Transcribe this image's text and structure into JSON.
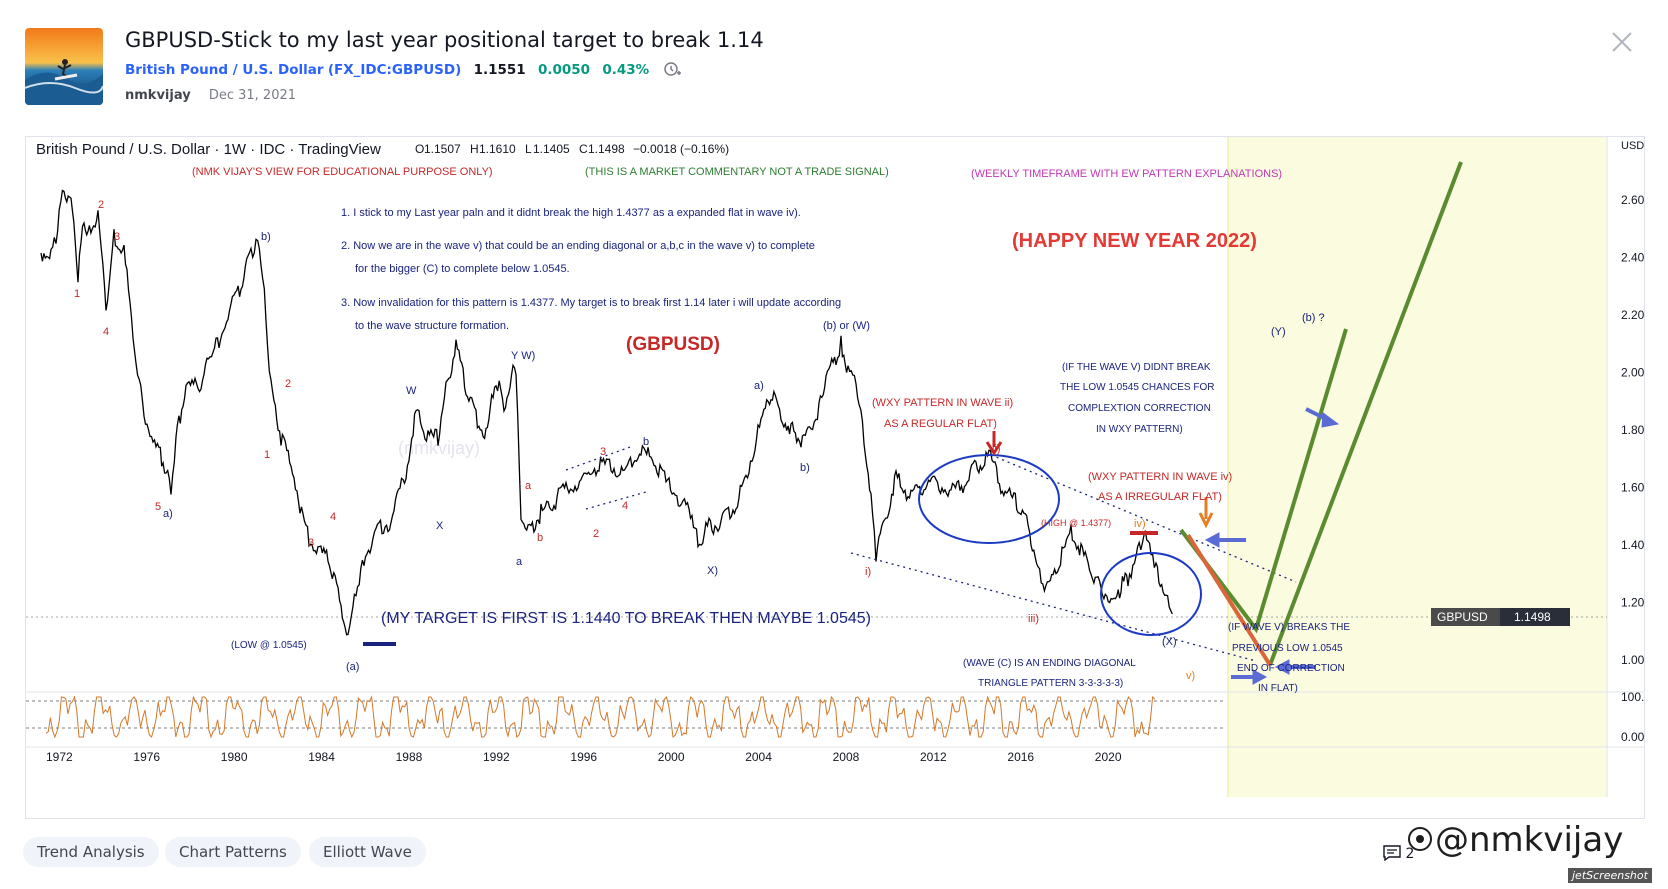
{
  "header": {
    "title": "GBPUSD-Stick to my last year positional target to break 1.14",
    "symbol_name": "British Pound / U.S. Dollar",
    "symbol_code": "(FX_IDC:GBPUSD)",
    "price": "1.1551",
    "change": "0.0050",
    "change_pct": "0.43%",
    "author": "nmkvijay",
    "date": "Dec 31, 2021",
    "thumbnail_icon": "surfer-thumbnail",
    "close_icon": "close-icon"
  },
  "chart": {
    "legend_title": "British Pound / U.S. Dollar · 1W · IDC · TradingView",
    "ohlc": {
      "o_label": "O",
      "o": "1.1507",
      "h_label": "H",
      "h": "1.1610",
      "l_label": "L",
      "l": "1.1405",
      "c_label": "C",
      "c": "1.1498",
      "change": "−0.0018 (−0.16%)"
    },
    "currency": "USD",
    "price_tag_symbol": "GBPUSD",
    "price_tag_value": "1.1498",
    "price_ticks": [
      "2.6000",
      "2.4000",
      "2.2000",
      "2.0000",
      "1.8000",
      "1.6000",
      "1.4000",
      "1.2000",
      "1.0000"
    ],
    "osc_ticks": [
      "100.00",
      "0.00"
    ],
    "year_ticks": [
      "1972",
      "1976",
      "1980",
      "1984",
      "1988",
      "1992",
      "1996",
      "2000",
      "2004",
      "2008",
      "2012",
      "2016",
      "2020"
    ],
    "annotations": {
      "edu": "(NMK VIJAY'S VIEW FOR EDUCATIONAL PURPOSE ONLY)",
      "commentary": "(THIS IS A MARKET COMMENTARY NOT A TRADE SIGNAL)",
      "weekly": "(WEEKLY TIMEFRAME WITH EW PATTERN EXPLANATIONS)",
      "note1": "1. I stick to my Last year paln and it didnt break the high 1.4377 as a expanded flat in wave iv).",
      "note2a": "2. Now we are in the wave v) that could be an ending diagonal or a,b,c in the wave v) to complete",
      "note2b": "for the bigger (C) to complete below 1.0545.",
      "note3a": "3. Now invalidation for this pattern is 1.4377. My target is to break first 1.14 later i will update according",
      "note3b": "to the wave structure formation.",
      "happy": "(HAPPY NEW YEAR 2022)",
      "gbpusd": "(GBPUSD)",
      "target": "(MY TARGET IS FIRST IS 1.1440 TO BREAK THEN MAYBE 1.0545)",
      "wxy_ii_1": "(WXY PATTERN IN WAVE ii)",
      "wxy_ii_2": "AS A REGULAR FLAT)",
      "wxy_iv_1": "(WXY PATTERN IN WAVE iv)",
      "wxy_iv_2": "AS A IRREGULAR FLAT)",
      "ifv_1": "(IF THE WAVE V) DIDNT BREAK",
      "ifv_2": "THE LOW 1.0545 CHANCES FOR",
      "ifv_3": "COMPLEXTION CORRECTION",
      "ifv_4": "IN WXY PATTERN)",
      "ifvb_1": "(IF WAVE V) BREAKS THE",
      "ifvb_2": "PREVIOUS LOW 1.0545",
      "ifvb_3": "END OF CORRECTION",
      "ifvb_4": "IN FLAT)",
      "wavec_1": "(WAVE (C) IS AN ENDING DIAGONAL",
      "wavec_2": "TRIANGLE PATTERN 3-3-3-3-3)",
      "low": "(LOW @ 1.0545)",
      "high": "(HIGH @ 1.4377)"
    },
    "wave_labels": [
      {
        "t": "1",
        "c": "red"
      },
      {
        "t": "2",
        "c": "red"
      },
      {
        "t": "3",
        "c": "red"
      },
      {
        "t": "4",
        "c": "red"
      },
      {
        "t": "5",
        "c": "red"
      },
      {
        "t": "a)",
        "c": "navy"
      },
      {
        "t": "b)",
        "c": "navy"
      },
      {
        "t": "1",
        "c": "red"
      },
      {
        "t": "2",
        "c": "red"
      },
      {
        "t": "3",
        "c": "red"
      },
      {
        "t": "4",
        "c": "red"
      },
      {
        "t": "(a)",
        "c": "navy"
      },
      {
        "t": "W",
        "c": "navy"
      },
      {
        "t": "X",
        "c": "navy"
      },
      {
        "t": "Y W)",
        "c": "navy"
      },
      {
        "t": "a",
        "c": "red"
      },
      {
        "t": "b",
        "c": "red"
      },
      {
        "t": "a",
        "c": "navy"
      },
      {
        "t": "2",
        "c": "red"
      },
      {
        "t": "3",
        "c": "red"
      },
      {
        "t": "4",
        "c": "red"
      },
      {
        "t": "b",
        "c": "navy"
      },
      {
        "t": "X)",
        "c": "navy"
      },
      {
        "t": "a)",
        "c": "navy"
      },
      {
        "t": "b)",
        "c": "navy"
      },
      {
        "t": "(b) or (W)",
        "c": "navy"
      },
      {
        "t": "i)",
        "c": "red"
      },
      {
        "t": "ii)",
        "c": "red"
      },
      {
        "t": "iii)",
        "c": "red"
      },
      {
        "t": "iv)",
        "c": "orange"
      },
      {
        "t": "v)",
        "c": "orange"
      },
      {
        "t": "(X)",
        "c": "navy"
      },
      {
        "t": "(Y)",
        "c": "navy"
      },
      {
        "t": "(b) ?",
        "c": "navy"
      }
    ]
  },
  "tags": [
    "Trend Analysis",
    "Chart Patterns",
    "Elliott Wave"
  ],
  "footer": {
    "comment_count": "2",
    "watermark": "@nmkvijay",
    "jetscreenshot": "jetScreenshot"
  }
}
